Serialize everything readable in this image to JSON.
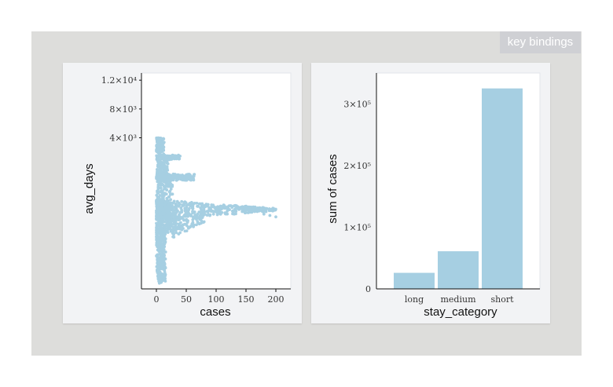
{
  "ui": {
    "key_bindings_label": "key bindings"
  },
  "colors": {
    "mark": "#a6cfe2",
    "plot_bg": "#ffffff",
    "panel_bg": "#f2f3f5",
    "stage_bg": "#dddddb"
  },
  "chart_data": [
    {
      "type": "scatter",
      "xlabel": "cases",
      "ylabel": "avg_days",
      "y_scale": "log",
      "xlim": [
        -25,
        225
      ],
      "ylim": [
        -17000,
        13000
      ],
      "x_ticks": [
        0,
        50,
        100,
        150,
        200
      ],
      "x_tick_labels": [
        "0",
        "50",
        "100",
        "150",
        "200"
      ],
      "y_ticks": [
        4000,
        8000,
        12000
      ],
      "y_tick_labels": [
        "4×10³",
        "8×10³",
        "1.2×10⁴"
      ],
      "point_summary": {
        "approx_count": 2000,
        "x_range": [
          0,
          200
        ],
        "note": "dense vertical band near x≈0–30 spanning y from about -16000 to 4000; horizontal arms near y≈-6000 (x to ~200) and y≈-1500 (x to ~65), smaller arm near y≈1200"
      }
    },
    {
      "type": "bar",
      "xlabel": "stay_category",
      "ylabel": "sum of cases",
      "categories": [
        "long",
        "medium",
        "short"
      ],
      "values": [
        26000,
        61000,
        325000
      ],
      "ylim": [
        0,
        350000
      ],
      "y_ticks": [
        0,
        100000,
        200000,
        300000
      ],
      "y_tick_labels": [
        "0",
        "1×10⁵",
        "2×10⁵",
        "3×10⁵"
      ]
    }
  ]
}
